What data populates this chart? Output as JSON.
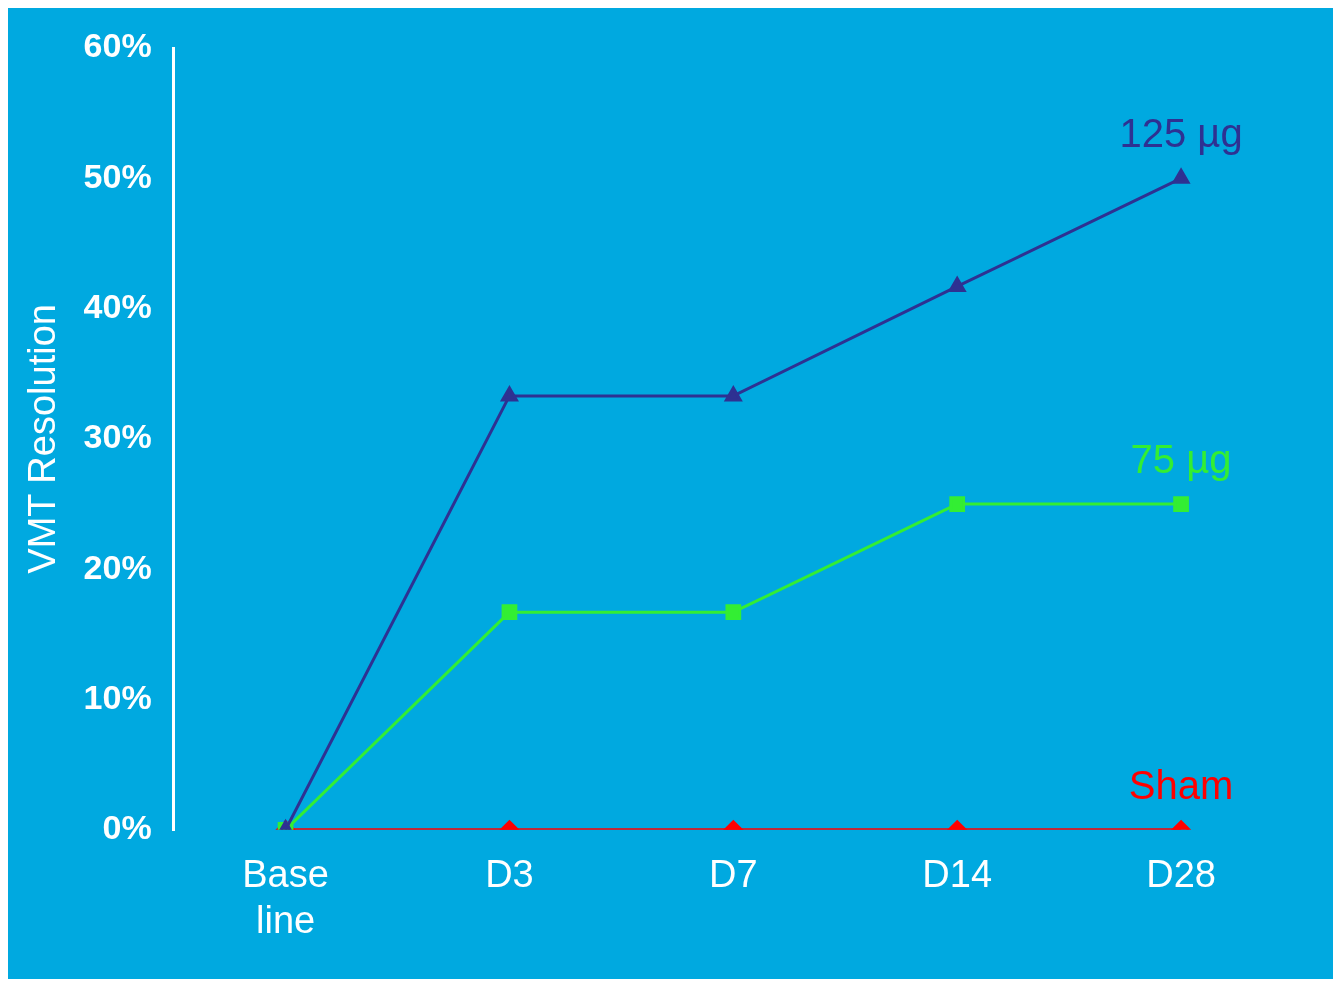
{
  "chart_data": {
    "type": "line",
    "ylabel": "VMT Resolution",
    "categories": [
      "Base line",
      "D3",
      "D7",
      "D14",
      "D28"
    ],
    "series": [
      {
        "name": "125 µg",
        "color": "#2e3192",
        "marker": "triangle",
        "values": [
          0,
          33.3,
          33.3,
          41.7,
          50
        ]
      },
      {
        "name": "75 µg",
        "color": "#33ee33",
        "marker": "square",
        "values": [
          0,
          16.7,
          16.7,
          25,
          25
        ]
      },
      {
        "name": "Sham",
        "color": "#ff0000",
        "marker": "diamond",
        "values": [
          0,
          0,
          0,
          0,
          0
        ]
      }
    ],
    "ylim": [
      0,
      60
    ],
    "yticks": [
      {
        "value": 0,
        "label": "0%"
      },
      {
        "value": 10,
        "label": "10%"
      },
      {
        "value": 20,
        "label": "20%"
      },
      {
        "value": 30,
        "label": "30%"
      },
      {
        "value": 40,
        "label": "40%"
      },
      {
        "value": 50,
        "label": "50%"
      },
      {
        "value": 60,
        "label": "60%"
      }
    ],
    "grid": false,
    "legend": false
  }
}
